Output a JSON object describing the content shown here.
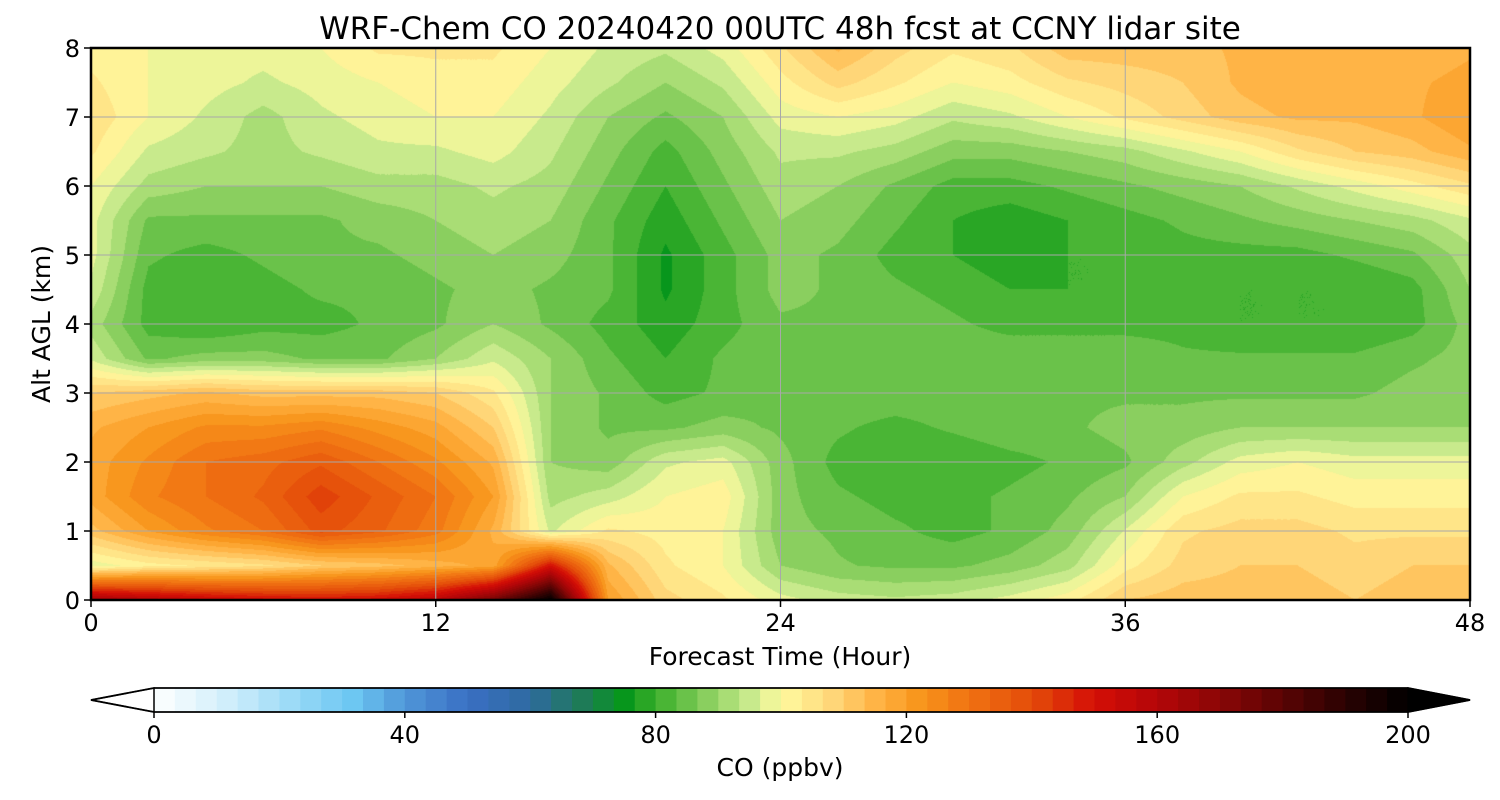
{
  "chart_data": {
    "type": "heatmap",
    "title": "WRF-Chem CO  20240420 00UTC 48h fcst at CCNY lidar site",
    "xlabel": "Forecast Time (Hour)",
    "ylabel": "Alt AGL (km)",
    "xlim": [
      0,
      48
    ],
    "ylim": [
      0,
      8
    ],
    "x_ticks": [
      "0",
      "12",
      "24",
      "36",
      "48"
    ],
    "y_ticks": [
      "0",
      "1",
      "2",
      "3",
      "4",
      "5",
      "6",
      "7",
      "8"
    ],
    "grid": true,
    "colorbar": {
      "label": "CO  (ppbv)",
      "range": [
        0,
        200
      ],
      "ticks": [
        "0",
        "40",
        "80",
        "120",
        "160",
        "200"
      ],
      "extend": "both",
      "colors": [
        {
          "v": 0,
          "c": "#ffffff"
        },
        {
          "v": 12,
          "c": "#cfeefb"
        },
        {
          "v": 25,
          "c": "#8cd4f5"
        },
        {
          "v": 32,
          "c": "#6bc6f2"
        },
        {
          "v": 40,
          "c": "#4f96d8"
        },
        {
          "v": 50,
          "c": "#3a6fc4"
        },
        {
          "v": 60,
          "c": "#2e6aa0"
        },
        {
          "v": 68,
          "c": "#1f7a5a"
        },
        {
          "v": 75,
          "c": "#07961c"
        },
        {
          "v": 80,
          "c": "#3aae2a"
        },
        {
          "v": 85,
          "c": "#6ac24a"
        },
        {
          "v": 90,
          "c": "#9ad669"
        },
        {
          "v": 95,
          "c": "#c8ea8c"
        },
        {
          "v": 100,
          "c": "#fffaa0"
        },
        {
          "v": 108,
          "c": "#ffd87a"
        },
        {
          "v": 115,
          "c": "#ffb446"
        },
        {
          "v": 122,
          "c": "#f8961c"
        },
        {
          "v": 130,
          "c": "#f07212"
        },
        {
          "v": 140,
          "c": "#e44c0a"
        },
        {
          "v": 150,
          "c": "#d40e06"
        },
        {
          "v": 160,
          "c": "#b40608"
        },
        {
          "v": 170,
          "c": "#8a0606"
        },
        {
          "v": 180,
          "c": "#5a0404"
        },
        {
          "v": 190,
          "c": "#2a0202"
        },
        {
          "v": 200,
          "c": "#000000"
        }
      ]
    },
    "x": [
      0,
      2,
      4,
      6,
      8,
      10,
      12,
      14,
      16,
      18,
      20,
      22,
      24,
      26,
      28,
      30,
      32,
      34,
      36,
      38,
      40,
      42,
      44,
      46,
      48
    ],
    "y": [
      0,
      0.5,
      1,
      1.5,
      2,
      2.5,
      3,
      3.5,
      4,
      4.5,
      5,
      5.5,
      6,
      6.5,
      7,
      7.5,
      8
    ],
    "values": [
      [
        165,
        160,
        155,
        152,
        150,
        152,
        158,
        175,
        200,
        120,
        108,
        104,
        98,
        95,
        94,
        95,
        98,
        102,
        110,
        112,
        112,
        112,
        110,
        112,
        112
      ],
      [
        98,
        102,
        104,
        106,
        110,
        112,
        115,
        118,
        150,
        114,
        104,
        100,
        90,
        87,
        86,
        86,
        88,
        92,
        102,
        108,
        110,
        110,
        108,
        110,
        110
      ],
      [
        112,
        120,
        126,
        130,
        138,
        134,
        128,
        116,
        96,
        104,
        102,
        100,
        88,
        86,
        84,
        82,
        84,
        88,
        97,
        106,
        108,
        108,
        106,
        106,
        106
      ],
      [
        118,
        126,
        130,
        134,
        142,
        136,
        130,
        120,
        92,
        95,
        100,
        102,
        88,
        84,
        82,
        82,
        84,
        86,
        90,
        100,
        104,
        104,
        102,
        102,
        102
      ],
      [
        118,
        124,
        130,
        132,
        136,
        130,
        124,
        116,
        90,
        88,
        96,
        98,
        88,
        82,
        80,
        80,
        82,
        84,
        86,
        92,
        98,
        100,
        98,
        98,
        98
      ],
      [
        116,
        120,
        124,
        124,
        126,
        122,
        118,
        110,
        90,
        86,
        86,
        88,
        86,
        84,
        82,
        84,
        86,
        86,
        88,
        88,
        90,
        90,
        90,
        90,
        90
      ],
      [
        110,
        112,
        114,
        112,
        112,
        112,
        110,
        104,
        90,
        86,
        82,
        84,
        86,
        86,
        86,
        86,
        86,
        86,
        86,
        86,
        86,
        86,
        86,
        88,
        88
      ],
      [
        96,
        86,
        88,
        88,
        86,
        86,
        90,
        96,
        90,
        84,
        80,
        84,
        86,
        86,
        86,
        86,
        86,
        86,
        86,
        84,
        84,
        84,
        84,
        86,
        88
      ],
      [
        92,
        82,
        80,
        82,
        82,
        84,
        86,
        90,
        86,
        82,
        78,
        82,
        86,
        86,
        86,
        84,
        82,
        82,
        82,
        82,
        80,
        80,
        80,
        82,
        88
      ],
      [
        96,
        82,
        80,
        82,
        84,
        84,
        86,
        88,
        86,
        84,
        76,
        82,
        88,
        86,
        84,
        82,
        80,
        80,
        80,
        80,
        80,
        80,
        80,
        82,
        90
      ],
      [
        98,
        84,
        82,
        84,
        86,
        86,
        88,
        90,
        88,
        84,
        76,
        82,
        88,
        86,
        82,
        80,
        78,
        80,
        80,
        82,
        82,
        82,
        84,
        86,
        92
      ],
      [
        98,
        86,
        86,
        86,
        86,
        88,
        90,
        92,
        90,
        84,
        78,
        84,
        90,
        88,
        84,
        80,
        78,
        80,
        82,
        84,
        86,
        88,
        90,
        92,
        96
      ],
      [
        100,
        92,
        90,
        90,
        90,
        92,
        92,
        94,
        92,
        86,
        80,
        86,
        92,
        90,
        86,
        82,
        82,
        84,
        86,
        88,
        90,
        94,
        98,
        102,
        106
      ],
      [
        104,
        96,
        94,
        92,
        94,
        96,
        96,
        98,
        94,
        88,
        82,
        88,
        94,
        94,
        92,
        88,
        88,
        90,
        92,
        96,
        100,
        106,
        110,
        112,
        116
      ],
      [
        106,
        100,
        96,
        92,
        96,
        98,
        100,
        100,
        96,
        90,
        86,
        90,
        98,
        100,
        98,
        94,
        96,
        100,
        104,
        108,
        112,
        114,
        114,
        116,
        120
      ],
      [
        104,
        100,
        98,
        96,
        98,
        100,
        102,
        102,
        98,
        94,
        90,
        94,
        102,
        108,
        104,
        100,
        102,
        106,
        108,
        110,
        114,
        116,
        114,
        116,
        118
      ],
      [
        102,
        100,
        98,
        98,
        100,
        104,
        104,
        104,
        100,
        96,
        94,
        98,
        106,
        114,
        108,
        104,
        106,
        112,
        112,
        112,
        114,
        116,
        114,
        114,
        116
      ]
    ]
  }
}
